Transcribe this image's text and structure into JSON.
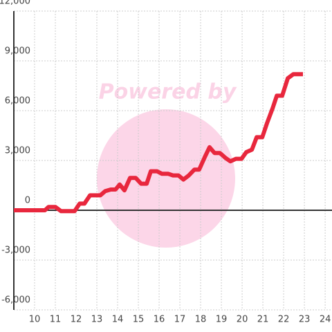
{
  "chart_data": {
    "type": "line",
    "watermark": "Powered by",
    "x": [
      9,
      10.5,
      10.67,
      11,
      11.27,
      11.67,
      11.93,
      12.17,
      12.4,
      12.67,
      13.17,
      13.4,
      13.67,
      13.9,
      14.1,
      14.33,
      14.6,
      14.87,
      15.13,
      15.4,
      15.6,
      15.9,
      16.13,
      16.43,
      16.67,
      16.93,
      17.17,
      17.43,
      17.7,
      17.93,
      18.2,
      18.43,
      18.67,
      18.93,
      19.2,
      19.43,
      19.7,
      19.97,
      20.2,
      20.47,
      20.7,
      20.97,
      21.2,
      21.47,
      21.67,
      21.93,
      22.2,
      22.47,
      22.93
    ],
    "series": [
      {
        "color": "#e8273d",
        "values": [
          0,
          0,
          200,
          200,
          -50,
          -50,
          -50,
          400,
          400,
          900,
          900,
          1150,
          1250,
          1250,
          1550,
          1200,
          1950,
          1950,
          1600,
          1600,
          2350,
          2350,
          2200,
          2200,
          2100,
          2100,
          1850,
          2100,
          2450,
          2450,
          3200,
          3800,
          3450,
          3450,
          3150,
          2950,
          3100,
          3100,
          3500,
          3650,
          4400,
          4400,
          5250,
          6150,
          6900,
          6900,
          7950,
          8200,
          8200
        ]
      }
    ],
    "xlim": [
      9,
      24.33
    ],
    "xticks": [
      10,
      11,
      12,
      13,
      14,
      15,
      16,
      17,
      18,
      19,
      20,
      21,
      22,
      23,
      24
    ],
    "ylim": [
      -6000,
      12000
    ],
    "yticks": [
      {
        "value": -6000,
        "label": "-6,000"
      },
      {
        "value": -3000,
        "label": "-3,000"
      },
      0,
      {
        "value": 3000,
        "label": "3,000"
      },
      {
        "value": 6000,
        "label": "6,000"
      },
      {
        "value": 9000,
        "label": "9,000"
      },
      {
        "value": 12000,
        "label": "12,000"
      }
    ],
    "grid": true
  }
}
